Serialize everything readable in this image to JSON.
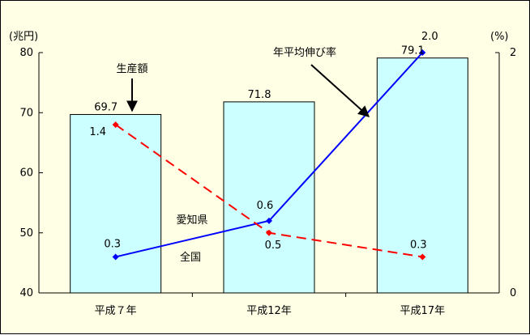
{
  "chart_data": {
    "type": "bar-line-combo",
    "categories": [
      "平成７年",
      "平成12年",
      "平成17年"
    ],
    "bar_series": {
      "name": "生産額",
      "values": [
        69.7,
        71.8,
        79.1
      ],
      "labels": [
        "69.7",
        "71.8",
        "79.1"
      ],
      "color": "#ccffff"
    },
    "line_series": [
      {
        "name": "愛知県",
        "values": [
          0.3,
          0.6,
          2.0
        ],
        "labels": [
          "0.3",
          "0.6",
          "2.0"
        ],
        "color": "#0000ff",
        "dash": "solid"
      },
      {
        "name": "全国",
        "values": [
          1.4,
          0.5,
          0.3
        ],
        "labels": [
          "1.4",
          "0.5",
          "0.3"
        ],
        "color": "#ff0000",
        "dash": "dashed"
      }
    ],
    "y_left": {
      "unit": "(兆円)",
      "ylim": [
        40,
        80
      ],
      "ticks": [
        "40",
        "50",
        "60",
        "70",
        "80"
      ]
    },
    "y_right": {
      "unit": "(%)",
      "ylim": [
        0,
        2
      ],
      "ticks": [
        "0",
        "2"
      ]
    },
    "annotations": {
      "bar_callout": "生産額",
      "line_callout": "年平均伸び率"
    },
    "grid": false
  }
}
